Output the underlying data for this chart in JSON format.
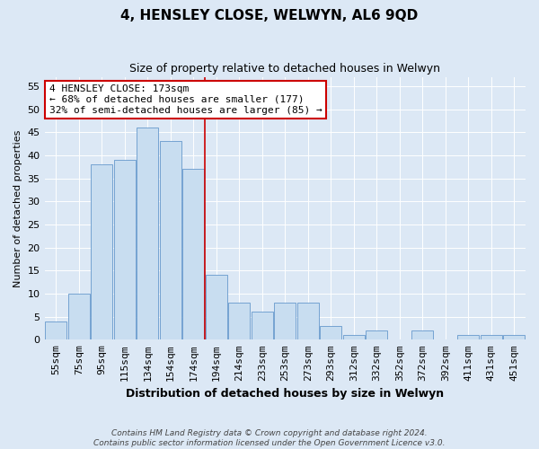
{
  "title": "4, HENSLEY CLOSE, WELWYN, AL6 9QD",
  "subtitle": "Size of property relative to detached houses in Welwyn",
  "xlabel": "Distribution of detached houses by size in Welwyn",
  "ylabel": "Number of detached properties",
  "bar_labels": [
    "55sqm",
    "75sqm",
    "95sqm",
    "115sqm",
    "134sqm",
    "154sqm",
    "174sqm",
    "194sqm",
    "214sqm",
    "233sqm",
    "253sqm",
    "273sqm",
    "293sqm",
    "312sqm",
    "332sqm",
    "352sqm",
    "372sqm",
    "392sqm",
    "411sqm",
    "431sqm",
    "451sqm"
  ],
  "bar_heights": [
    4,
    10,
    38,
    39,
    46,
    43,
    37,
    14,
    8,
    6,
    8,
    8,
    3,
    1,
    2,
    0,
    2,
    0,
    1,
    1,
    1
  ],
  "bar_color": "#c8ddf0",
  "bar_edge_color": "#6699cc",
  "highlight_bar_index": 6,
  "highlight_line_color": "#cc0000",
  "ylim": [
    0,
    57
  ],
  "yticks": [
    0,
    5,
    10,
    15,
    20,
    25,
    30,
    35,
    40,
    45,
    50,
    55
  ],
  "annotation_title": "4 HENSLEY CLOSE: 173sqm",
  "annotation_line1": "← 68% of detached houses are smaller (177)",
  "annotation_line2": "32% of semi-detached houses are larger (85) →",
  "annotation_box_color": "#ffffff",
  "annotation_box_edge": "#cc0000",
  "footer_line1": "Contains HM Land Registry data © Crown copyright and database right 2024.",
  "footer_line2": "Contains public sector information licensed under the Open Government Licence v3.0.",
  "bg_color": "#dce8f5",
  "plot_bg_color": "#dce8f5",
  "grid_color": "#ffffff",
  "title_fontsize": 11,
  "subtitle_fontsize": 9,
  "xlabel_fontsize": 9,
  "ylabel_fontsize": 8,
  "tick_fontsize": 8,
  "annot_fontsize": 8
}
